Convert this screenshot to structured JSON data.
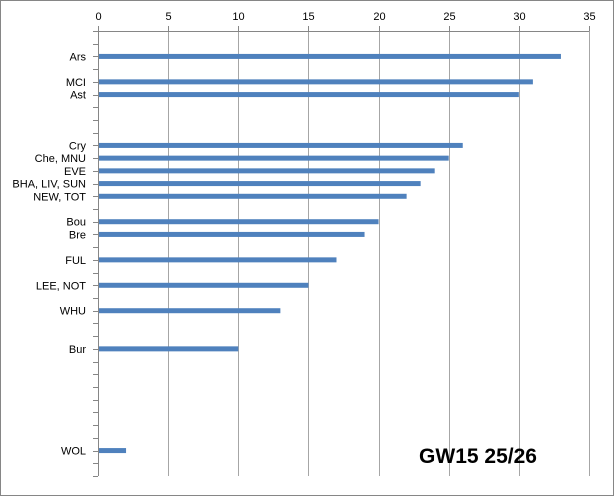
{
  "chart_data": {
    "type": "bar",
    "orientation": "horizontal",
    "title": "GW15 25/26",
    "xlabel": "",
    "ylabel": "",
    "xlim": [
      0,
      35
    ],
    "ylim": [
      0,
      35
    ],
    "x_ticks": [
      0,
      5,
      10,
      15,
      20,
      25,
      30,
      35
    ],
    "x_axis_position": "top",
    "grid": "vertical",
    "legend": "none",
    "bar_color": "#4f81bd",
    "grid_color": "#a6a6a6",
    "border_color": "#868686",
    "title_position": "bottom-right",
    "y_axis_note": "categories sit on a numeric rank scale; y_positions give each label's position on that scale",
    "categories": [
      "Ars",
      "MCI",
      "Ast",
      "Cry",
      "Che, MNU",
      "EVE",
      "BHA, LIV, SUN",
      "NEW, TOT",
      "Bou",
      "Bre",
      "FUL",
      "LEE, NOT",
      "WHU",
      "Bur",
      "WOL"
    ],
    "values": [
      33,
      31,
      30,
      26,
      25,
      24,
      23,
      22,
      20,
      19,
      17,
      15,
      13,
      10,
      2
    ],
    "y_positions": [
      33,
      31,
      30,
      26,
      25,
      24,
      23,
      22,
      20,
      19,
      17,
      15,
      13,
      10,
      2
    ]
  }
}
